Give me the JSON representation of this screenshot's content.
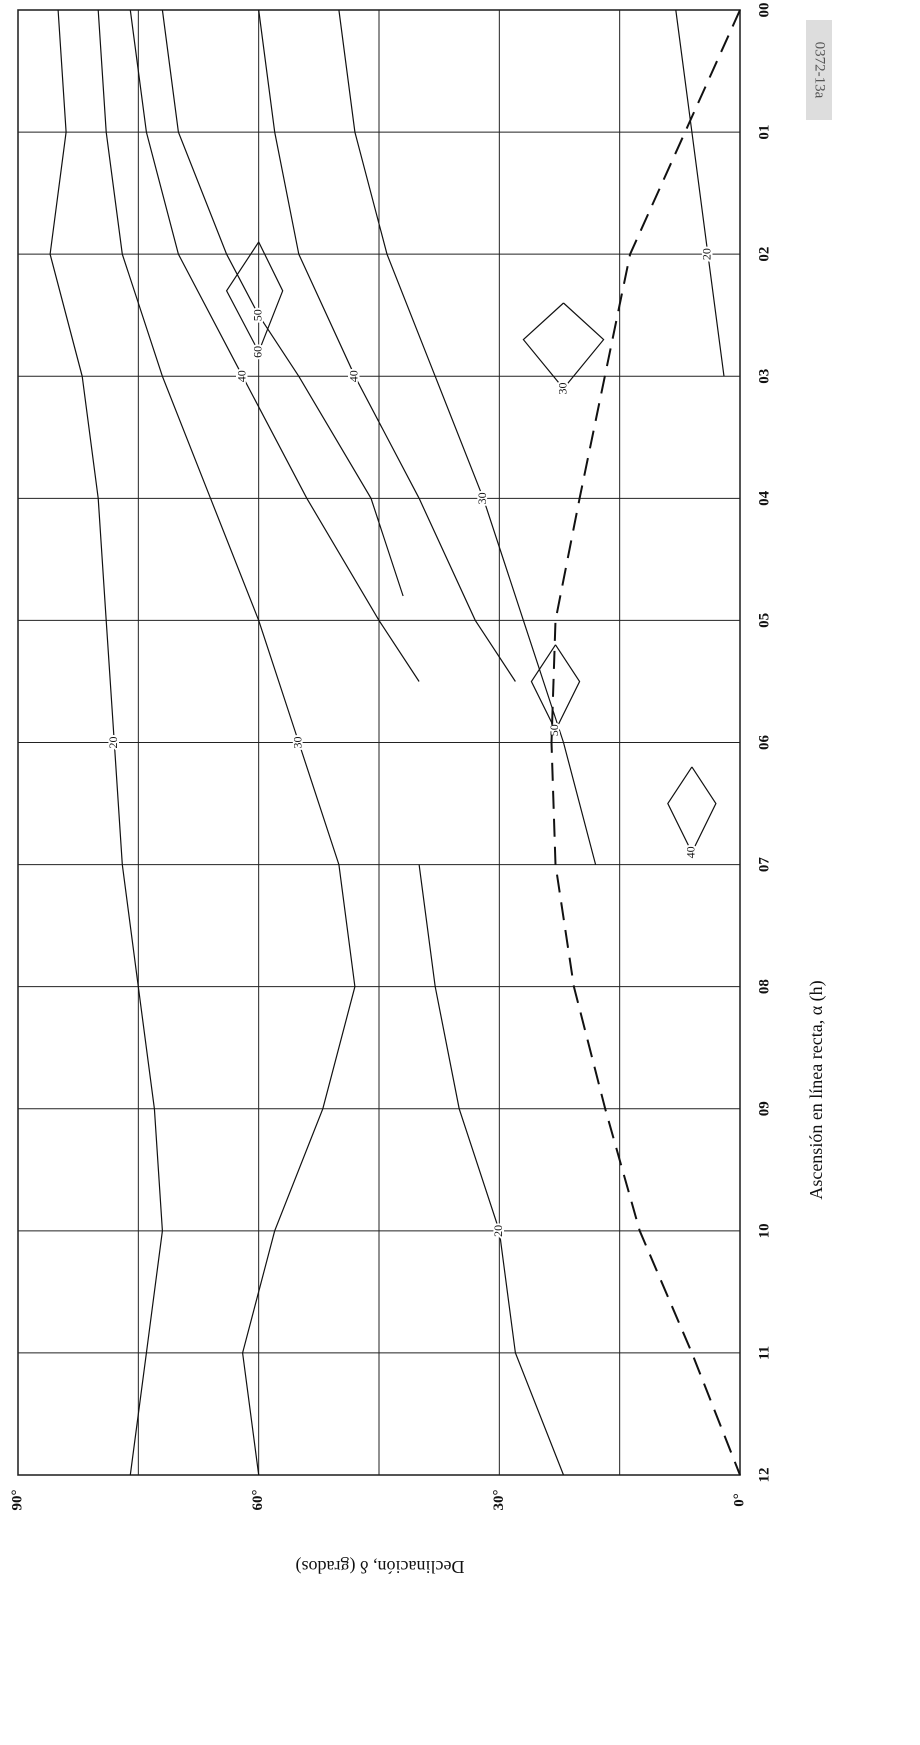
{
  "chart_data": {
    "type": "contour",
    "xlabel": "Ascensión en línea recta, α (h)",
    "ylabel": "Declinación, δ (grados)",
    "note": "0372-13a",
    "xlim": [
      12,
      0
    ],
    "ylim": [
      0,
      90
    ],
    "xticks": [
      {
        "value": 0,
        "label": "00"
      },
      {
        "value": 1,
        "label": "01"
      },
      {
        "value": 2,
        "label": "02"
      },
      {
        "value": 3,
        "label": "03"
      },
      {
        "value": 4,
        "label": "04"
      },
      {
        "value": 5,
        "label": "05"
      },
      {
        "value": 6,
        "label": "06"
      },
      {
        "value": 7,
        "label": "07"
      },
      {
        "value": 8,
        "label": "08"
      },
      {
        "value": 9,
        "label": "09"
      },
      {
        "value": 10,
        "label": "10"
      },
      {
        "value": 11,
        "label": "11"
      },
      {
        "value": 12,
        "label": "12"
      }
    ],
    "yticks": [
      {
        "value": 0,
        "label": "0°"
      },
      {
        "value": 15,
        "label": null
      },
      {
        "value": 30,
        "label": "30°"
      },
      {
        "value": 45,
        "label": null
      },
      {
        "value": 60,
        "label": "60°"
      },
      {
        "value": 75,
        "label": null
      },
      {
        "value": 90,
        "label": "90°"
      }
    ],
    "grid": true,
    "color": "#111111",
    "contours": [
      {
        "level": 20,
        "x": [
          0,
          1,
          2,
          3,
          4,
          5,
          6,
          7,
          8,
          9,
          10,
          11,
          12
        ],
        "y": [
          85,
          84,
          86,
          82,
          80,
          79,
          78,
          77,
          75,
          73,
          72,
          74,
          76
        ]
      },
      {
        "level": 30,
        "x": [
          0,
          1,
          2,
          3,
          4,
          5,
          6,
          7,
          8,
          9,
          10,
          11,
          12
        ],
        "y": [
          80,
          79,
          77,
          72,
          66,
          60,
          55,
          50,
          48,
          52,
          58,
          62,
          60
        ]
      },
      {
        "level": 40,
        "x": [
          0,
          1,
          2,
          3,
          4,
          5,
          5.5
        ],
        "y": [
          76,
          74,
          70,
          62,
          54,
          45,
          40
        ]
      },
      {
        "level": 50,
        "x": [
          0,
          1,
          2,
          2.5,
          3,
          4,
          4.8
        ],
        "y": [
          72,
          70,
          64,
          60,
          55,
          46,
          42
        ]
      },
      {
        "level": 60,
        "x": [
          1.9,
          2.3,
          2.8,
          2.3,
          1.9
        ],
        "y": [
          60,
          64,
          60,
          57,
          60
        ]
      },
      {
        "level": 40,
        "x": [
          0,
          1,
          2,
          3,
          4,
          5,
          5.5
        ],
        "y": [
          60,
          58,
          55,
          48,
          40,
          33,
          28
        ]
      },
      {
        "level": 30,
        "x": [
          0,
          1,
          2,
          3,
          4,
          5,
          6,
          7
        ],
        "y": [
          50,
          48,
          44,
          38,
          32,
          27,
          22,
          18
        ]
      },
      {
        "level": 50,
        "x": [
          5.2,
          5.5,
          5.9,
          5.5,
          5.2
        ],
        "y": [
          23,
          26,
          23,
          20,
          23
        ]
      },
      {
        "level": 40,
        "x": [
          6.2,
          6.5,
          6.9,
          6.5,
          6.2
        ],
        "y": [
          6,
          9,
          6,
          3,
          6
        ]
      },
      {
        "level": 30,
        "x": [
          2.4,
          2.7,
          3.1,
          2.7,
          2.4
        ],
        "y": [
          22,
          27,
          22,
          17,
          22
        ]
      },
      {
        "level": 20,
        "x": [
          7,
          8,
          9,
          10,
          11,
          12
        ],
        "y": [
          40,
          38,
          35,
          30,
          28,
          22
        ]
      },
      {
        "level": 20,
        "x": [
          0,
          1,
          2,
          3
        ],
        "y": [
          8,
          6,
          4,
          2
        ]
      }
    ],
    "dashed_line": {
      "x": [
        0,
        2,
        4,
        5,
        6,
        7,
        8,
        9,
        10,
        11,
        12
      ],
      "y": [
        0,
        13.7,
        20,
        23,
        23.5,
        23,
        20.7,
        16.8,
        12.5,
        6,
        0
      ]
    }
  }
}
